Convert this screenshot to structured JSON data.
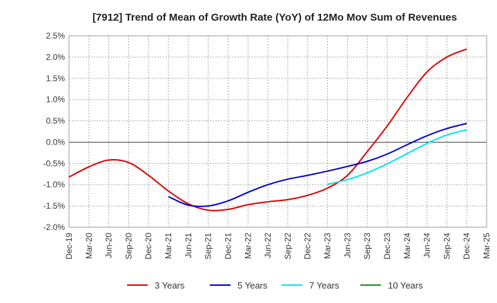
{
  "chart_data": {
    "type": "line",
    "title": "[7912]  Trend of Mean of Growth Rate (YoY) of 12Mo Mov Sum of Revenues",
    "xlabel": "",
    "ylabel": "",
    "ylim": [
      -2.0,
      2.5
    ],
    "yticks": [
      -2.0,
      -1.5,
      -1.0,
      -0.5,
      0.0,
      0.5,
      1.0,
      1.5,
      2.0,
      2.5
    ],
    "ytick_labels": [
      "-2.0%",
      "-1.5%",
      "-1.0%",
      "-0.5%",
      "0.0%",
      "0.5%",
      "1.0%",
      "1.5%",
      "2.0%",
      "2.5%"
    ],
    "x_categories": [
      "Dec-19",
      "Mar-20",
      "Jun-20",
      "Sep-20",
      "Dec-20",
      "Mar-21",
      "Jun-21",
      "Sep-21",
      "Dec-21",
      "Mar-22",
      "Jun-22",
      "Sep-22",
      "Dec-22",
      "Mar-23",
      "Jun-23",
      "Sep-23",
      "Dec-23",
      "Mar-24",
      "Jun-24",
      "Sep-24",
      "Dec-24",
      "Mar-25"
    ],
    "grid": true,
    "legend_position": "bottom",
    "series": [
      {
        "name": "3 Years",
        "color": "#dd0000",
        "values": [
          -0.82,
          -0.58,
          -0.42,
          -0.48,
          -0.78,
          -1.15,
          -1.45,
          -1.6,
          -1.58,
          -1.47,
          -1.4,
          -1.35,
          -1.25,
          -1.08,
          -0.78,
          -0.22,
          0.38,
          1.05,
          1.65,
          2.0,
          2.19,
          null
        ]
      },
      {
        "name": "5 Years",
        "color": "#0000cc",
        "values": [
          null,
          null,
          null,
          null,
          null,
          -1.28,
          -1.48,
          -1.5,
          -1.38,
          -1.18,
          -1.0,
          -0.87,
          -0.78,
          -0.68,
          -0.57,
          -0.45,
          -0.28,
          -0.06,
          0.15,
          0.32,
          0.44,
          null
        ]
      },
      {
        "name": "7 Years",
        "color": "#00e5ee",
        "values": [
          null,
          null,
          null,
          null,
          null,
          null,
          null,
          null,
          null,
          null,
          null,
          null,
          null,
          -0.99,
          -0.88,
          -0.72,
          -0.51,
          -0.27,
          -0.03,
          0.17,
          0.29,
          null
        ]
      },
      {
        "name": "10 Years",
        "color": "#228b22",
        "values": []
      }
    ]
  }
}
